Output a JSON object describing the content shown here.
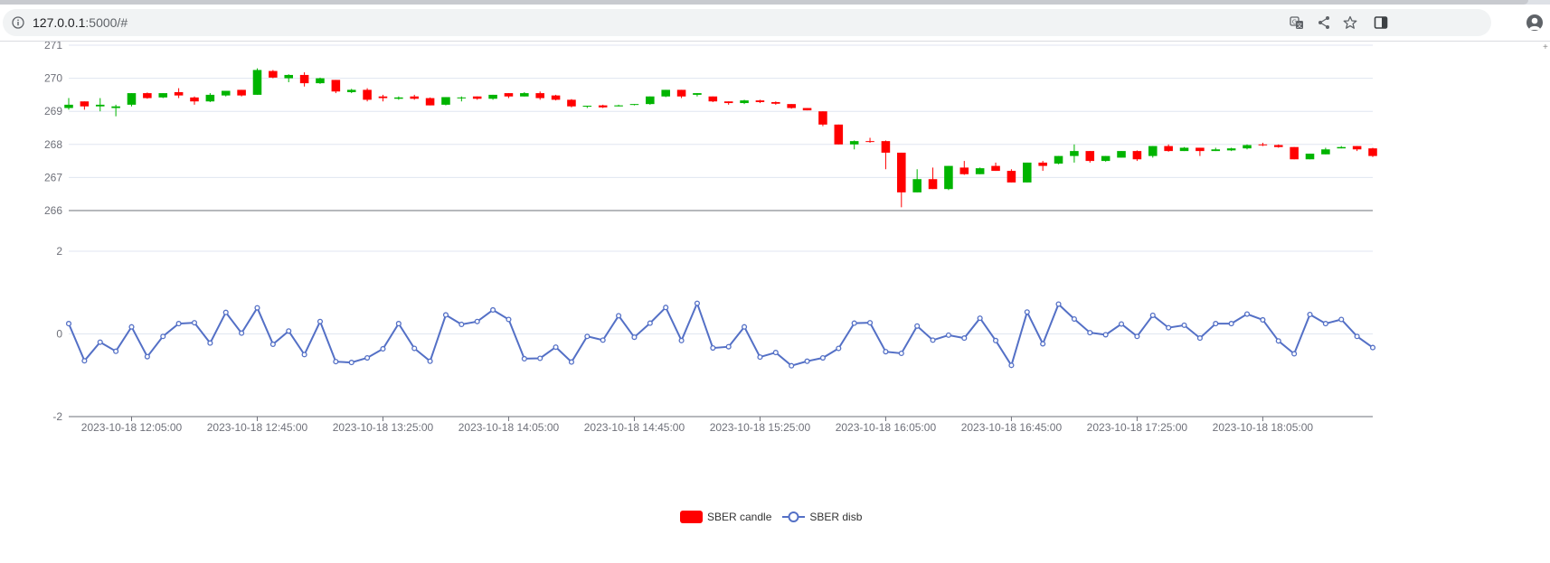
{
  "browser": {
    "url_host": "127.0.0.1",
    "url_rest": ":5000/#",
    "icons": [
      "info-icon",
      "translate-icon",
      "share-icon",
      "bookmark-star-icon",
      "side-panel-icon",
      "profile-avatar-icon"
    ]
  },
  "colors": {
    "up": "#00b400",
    "down": "#ff0000",
    "line": "#5470c6",
    "grid": "#e0e6f1",
    "axis_text": "#6e7079"
  },
  "chart_data": [
    {
      "type": "candlestick",
      "series_name": "SBER candle",
      "y_ticks": [
        "271",
        "270",
        "269",
        "268",
        "267",
        "266"
      ],
      "ylim": [
        266,
        271
      ],
      "x_tick_labels": [
        "2023-10-18 12:05:00",
        "2023-10-18 12:45:00",
        "2023-10-18 13:25:00",
        "2023-10-18 14:05:00",
        "2023-10-18 14:45:00",
        "2023-10-18 15:25:00",
        "2023-10-18 16:05:00",
        "2023-10-18 16:45:00",
        "2023-10-18 17:25:00",
        "2023-10-18 18:05:00"
      ],
      "interval_minutes": 5,
      "candles": [
        [
          269.1,
          269.2,
          269.05,
          269.4
        ],
        [
          269.3,
          269.15,
          269.05,
          269.3
        ],
        [
          269.15,
          269.2,
          269.0,
          269.4
        ],
        [
          269.1,
          269.15,
          268.85,
          269.2
        ],
        [
          269.2,
          269.55,
          269.15,
          269.55
        ],
        [
          269.55,
          269.4,
          269.38,
          269.57
        ],
        [
          269.42,
          269.55,
          269.4,
          269.55
        ],
        [
          269.58,
          269.48,
          269.4,
          269.7
        ],
        [
          269.42,
          269.3,
          269.2,
          269.45
        ],
        [
          269.3,
          269.5,
          269.28,
          269.55
        ],
        [
          269.48,
          269.62,
          269.45,
          269.62
        ],
        [
          269.65,
          269.48,
          269.45,
          269.65
        ],
        [
          269.5,
          270.25,
          269.5,
          270.3
        ],
        [
          270.22,
          270.02,
          270.0,
          270.25
        ],
        [
          270.0,
          270.1,
          269.88,
          270.12
        ],
        [
          270.1,
          269.85,
          269.75,
          270.18
        ],
        [
          269.85,
          270.0,
          269.83,
          270.02
        ],
        [
          269.95,
          269.6,
          269.55,
          269.95
        ],
        [
          269.58,
          269.65,
          269.55,
          269.68
        ],
        [
          269.65,
          269.35,
          269.3,
          269.7
        ],
        [
          269.45,
          269.4,
          269.3,
          269.5
        ],
        [
          269.38,
          269.42,
          269.35,
          269.45
        ],
        [
          269.45,
          269.38,
          269.35,
          269.5
        ],
        [
          269.4,
          269.18,
          269.18,
          269.42
        ],
        [
          269.2,
          269.43,
          269.18,
          269.43
        ],
        [
          269.4,
          269.42,
          269.3,
          269.45
        ],
        [
          269.45,
          269.38,
          269.35,
          269.45
        ],
        [
          269.38,
          269.5,
          269.35,
          269.5
        ],
        [
          269.55,
          269.45,
          269.4,
          269.55
        ],
        [
          269.45,
          269.55,
          269.45,
          269.58
        ],
        [
          269.55,
          269.4,
          269.35,
          269.6
        ],
        [
          269.48,
          269.35,
          269.33,
          269.5
        ],
        [
          269.35,
          269.15,
          269.12,
          269.37
        ],
        [
          269.15,
          269.17,
          269.1,
          269.17
        ],
        [
          269.18,
          269.12,
          269.1,
          269.2
        ],
        [
          269.15,
          269.18,
          269.15,
          269.2
        ],
        [
          269.2,
          269.22,
          269.18,
          269.22
        ],
        [
          269.22,
          269.45,
          269.2,
          269.45
        ],
        [
          269.45,
          269.65,
          269.43,
          269.65
        ],
        [
          269.65,
          269.45,
          269.4,
          269.65
        ],
        [
          269.5,
          269.55,
          269.45,
          269.55
        ],
        [
          269.45,
          269.3,
          269.28,
          269.45
        ],
        [
          269.3,
          269.25,
          269.2,
          269.3
        ],
        [
          269.25,
          269.33,
          269.22,
          269.35
        ],
        [
          269.33,
          269.28,
          269.25,
          269.35
        ],
        [
          269.28,
          269.23,
          269.2,
          269.3
        ],
        [
          269.22,
          269.1,
          269.08,
          269.22
        ],
        [
          269.1,
          269.03,
          269.03,
          269.1
        ],
        [
          269.0,
          268.6,
          268.55,
          269.0
        ],
        [
          268.6,
          268.0,
          268.0,
          268.6
        ],
        [
          268.0,
          268.1,
          267.85,
          268.12
        ],
        [
          268.1,
          268.08,
          268.05,
          268.2
        ],
        [
          268.1,
          267.75,
          267.25,
          268.12
        ],
        [
          267.75,
          266.55,
          266.1,
          267.75
        ],
        [
          266.55,
          266.95,
          266.55,
          267.25
        ],
        [
          266.95,
          266.65,
          266.65,
          267.3
        ],
        [
          266.65,
          267.35,
          266.62,
          267.35
        ],
        [
          267.3,
          267.1,
          267.08,
          267.5
        ],
        [
          267.1,
          267.28,
          267.1,
          267.3
        ],
        [
          267.35,
          267.2,
          267.2,
          267.45
        ],
        [
          267.2,
          266.85,
          266.85,
          267.25
        ],
        [
          266.85,
          267.45,
          266.85,
          267.45
        ],
        [
          267.45,
          267.35,
          267.2,
          267.5
        ],
        [
          267.42,
          267.65,
          267.4,
          267.65
        ],
        [
          267.65,
          267.8,
          267.45,
          268.0
        ],
        [
          267.8,
          267.5,
          267.45,
          267.8
        ],
        [
          267.5,
          267.65,
          267.48,
          267.65
        ],
        [
          267.6,
          267.8,
          267.6,
          267.8
        ],
        [
          267.8,
          267.55,
          267.5,
          267.82
        ],
        [
          267.65,
          267.95,
          267.6,
          267.95
        ],
        [
          267.95,
          267.8,
          267.78,
          268.0
        ],
        [
          267.8,
          267.9,
          267.8,
          267.92
        ],
        [
          267.9,
          267.8,
          267.65,
          267.9
        ],
        [
          267.8,
          267.85,
          267.8,
          267.9
        ],
        [
          267.82,
          267.88,
          267.8,
          267.9
        ],
        [
          267.88,
          267.98,
          267.85,
          268.0
        ],
        [
          268.0,
          267.98,
          267.95,
          268.05
        ],
        [
          267.98,
          267.92,
          267.9,
          268.0
        ],
        [
          267.92,
          267.55,
          267.55,
          267.92
        ],
        [
          267.55,
          267.72,
          267.55,
          267.72
        ],
        [
          267.7,
          267.85,
          267.7,
          267.9
        ],
        [
          267.88,
          267.92,
          267.88,
          267.95
        ],
        [
          267.95,
          267.85,
          267.8,
          267.95
        ],
        [
          267.88,
          267.65,
          267.62,
          267.9
        ]
      ]
    },
    {
      "type": "line",
      "series_name": "SBER disb",
      "y_ticks": [
        "2",
        "0",
        "-2"
      ],
      "ylim": [
        -2,
        2
      ],
      "values": [
        0.25,
        -0.65,
        -0.2,
        -0.42,
        0.17,
        -0.55,
        -0.06,
        0.25,
        0.27,
        -0.22,
        0.52,
        0.02,
        0.63,
        -0.25,
        0.07,
        -0.5,
        0.3,
        -0.67,
        -0.69,
        -0.58,
        -0.36,
        0.25,
        -0.35,
        -0.66,
        0.46,
        0.23,
        0.3,
        0.58,
        0.35,
        -0.6,
        -0.59,
        -0.32,
        -0.68,
        -0.06,
        -0.15,
        0.44,
        -0.08,
        0.26,
        0.64,
        -0.16,
        0.74,
        -0.34,
        -0.31,
        0.17,
        -0.56,
        -0.45,
        -0.77,
        -0.66,
        -0.58,
        -0.35,
        0.26,
        0.27,
        -0.43,
        -0.47,
        0.19,
        -0.15,
        -0.03,
        -0.1,
        0.38,
        -0.16,
        -0.76,
        0.53,
        -0.24,
        0.72,
        0.36,
        0.03,
        -0.02,
        0.24,
        -0.06,
        0.45,
        0.15,
        0.21,
        -0.1,
        0.25,
        0.25,
        0.48,
        0.34,
        -0.17,
        -0.48,
        0.47,
        0.25,
        0.35,
        -0.06,
        -0.33
      ]
    }
  ],
  "legend": {
    "candle_label": "SBER candle",
    "line_label": "SBER disb"
  }
}
